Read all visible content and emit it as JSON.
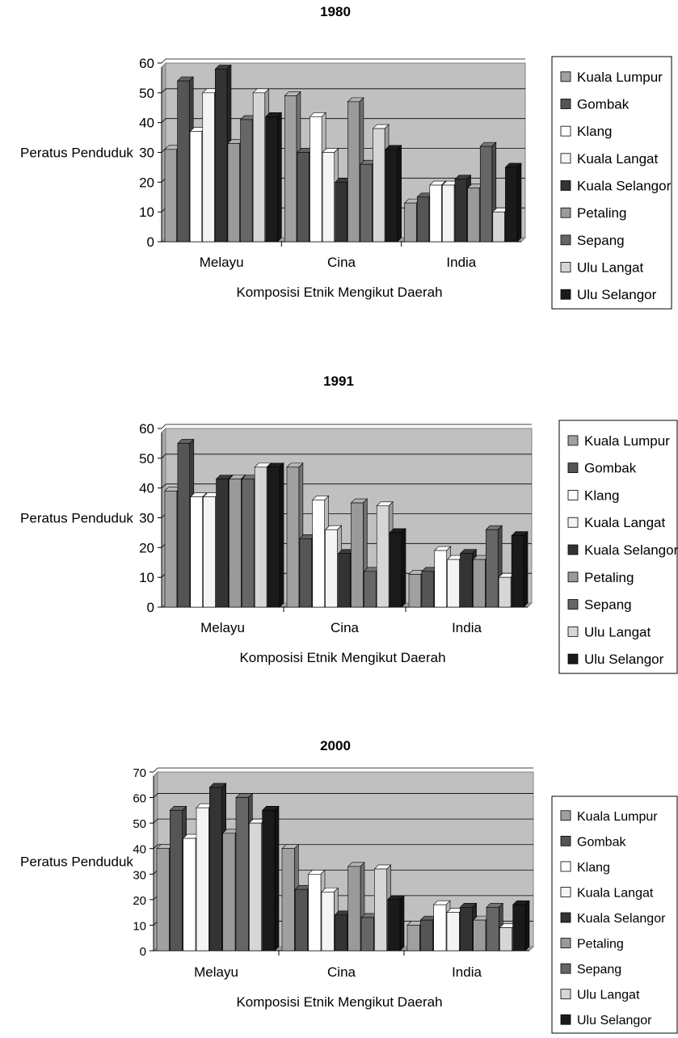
{
  "chart_data": [
    {
      "type": "bar",
      "title": "1980",
      "xlabel": "Komposisi Etnik Mengikut Daerah",
      "ylabel": "Peratus Penduduk",
      "ylim": [
        0,
        60
      ],
      "yticks": [
        0,
        10,
        20,
        30,
        40,
        50,
        60
      ],
      "grid": true,
      "legend_position": "right",
      "categories": [
        "Melayu",
        "Cina",
        "India"
      ],
      "series": [
        {
          "name": "Kuala Lumpur",
          "color": "#a0a0a0",
          "values": [
            31,
            49,
            13
          ]
        },
        {
          "name": "Gombak",
          "color": "#555555",
          "values": [
            54,
            30,
            15
          ]
        },
        {
          "name": "Klang",
          "color": "#ffffff",
          "values": [
            37,
            42,
            19
          ]
        },
        {
          "name": "Kuala Langat",
          "color": "#f4f4f4",
          "values": [
            50,
            30,
            19
          ]
        },
        {
          "name": "Kuala Selangor",
          "color": "#333333",
          "values": [
            58,
            20,
            21
          ]
        },
        {
          "name": "Petaling",
          "color": "#9a9a9a",
          "values": [
            33,
            47,
            18
          ]
        },
        {
          "name": "Sepang",
          "color": "#666666",
          "values": [
            41,
            26,
            32
          ]
        },
        {
          "name": "Ulu Langat",
          "color": "#d6d6d6",
          "values": [
            50,
            38,
            10
          ]
        },
        {
          "name": "Ulu Selangor",
          "color": "#1a1a1a",
          "values": [
            42,
            31,
            25
          ]
        }
      ]
    },
    {
      "type": "bar",
      "title": "1991",
      "xlabel": "Komposisi Etnik Mengikut Daerah",
      "ylabel": "Peratus Penduduk",
      "ylim": [
        0,
        60
      ],
      "yticks": [
        0,
        10,
        20,
        30,
        40,
        50,
        60
      ],
      "grid": true,
      "legend_position": "right",
      "categories": [
        "Melayu",
        "Cina",
        "India"
      ],
      "series": [
        {
          "name": "Kuala Lumpur",
          "color": "#a0a0a0",
          "values": [
            39,
            47,
            11
          ]
        },
        {
          "name": "Gombak",
          "color": "#555555",
          "values": [
            55,
            23,
            12
          ]
        },
        {
          "name": "Klang",
          "color": "#ffffff",
          "values": [
            37,
            36,
            19
          ]
        },
        {
          "name": "Kuala Langat",
          "color": "#f4f4f4",
          "values": [
            37,
            26,
            16
          ]
        },
        {
          "name": "Kuala Selangor",
          "color": "#333333",
          "values": [
            43,
            18,
            18
          ]
        },
        {
          "name": "Petaling",
          "color": "#9a9a9a",
          "values": [
            43,
            35,
            16
          ]
        },
        {
          "name": "Sepang",
          "color": "#666666",
          "values": [
            43,
            12,
            26
          ]
        },
        {
          "name": "Ulu Langat",
          "color": "#d6d6d6",
          "values": [
            47,
            34,
            10
          ]
        },
        {
          "name": "Ulu Selangor",
          "color": "#1a1a1a",
          "values": [
            47,
            25,
            24
          ]
        }
      ]
    },
    {
      "type": "bar",
      "title": "2000",
      "xlabel": "Komposisi Etnik Mengikut Daerah",
      "ylabel": "Peratus Penduduk",
      "ylim": [
        0,
        70
      ],
      "yticks": [
        0,
        10,
        20,
        30,
        40,
        50,
        60,
        70
      ],
      "grid": true,
      "legend_position": "right",
      "categories": [
        "Melayu",
        "Cina",
        "India"
      ],
      "series": [
        {
          "name": "Kuala Lumpur",
          "color": "#a0a0a0",
          "values": [
            40,
            40,
            10
          ]
        },
        {
          "name": "Gombak",
          "color": "#555555",
          "values": [
            55,
            24,
            12
          ]
        },
        {
          "name": "Klang",
          "color": "#ffffff",
          "values": [
            44,
            30,
            18
          ]
        },
        {
          "name": "Kuala Langat",
          "color": "#f4f4f4",
          "values": [
            56,
            23,
            15
          ]
        },
        {
          "name": "Kuala Selangor",
          "color": "#333333",
          "values": [
            64,
            14,
            17
          ]
        },
        {
          "name": "Petaling",
          "color": "#9a9a9a",
          "values": [
            46,
            33,
            12
          ]
        },
        {
          "name": "Sepang",
          "color": "#666666",
          "values": [
            60,
            13,
            17
          ]
        },
        {
          "name": "Ulu Langat",
          "color": "#d6d6d6",
          "values": [
            50,
            32,
            9
          ]
        },
        {
          "name": "Ulu Selangor",
          "color": "#1a1a1a",
          "values": [
            55,
            20,
            18
          ]
        }
      ]
    }
  ]
}
